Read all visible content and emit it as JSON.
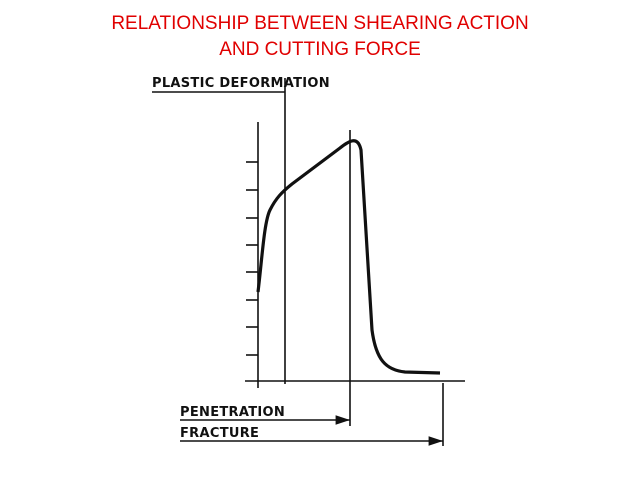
{
  "header": {
    "title_lines": [
      "RELATIONSHIP BETWEEN SHEARING ACTION",
      "AND CUTTING FORCE"
    ]
  },
  "labels": {
    "plastic_deformation": "PLASTIC  DEFORMATION",
    "penetration": "PENETRATION",
    "fracture": "FRACTURE"
  }
}
